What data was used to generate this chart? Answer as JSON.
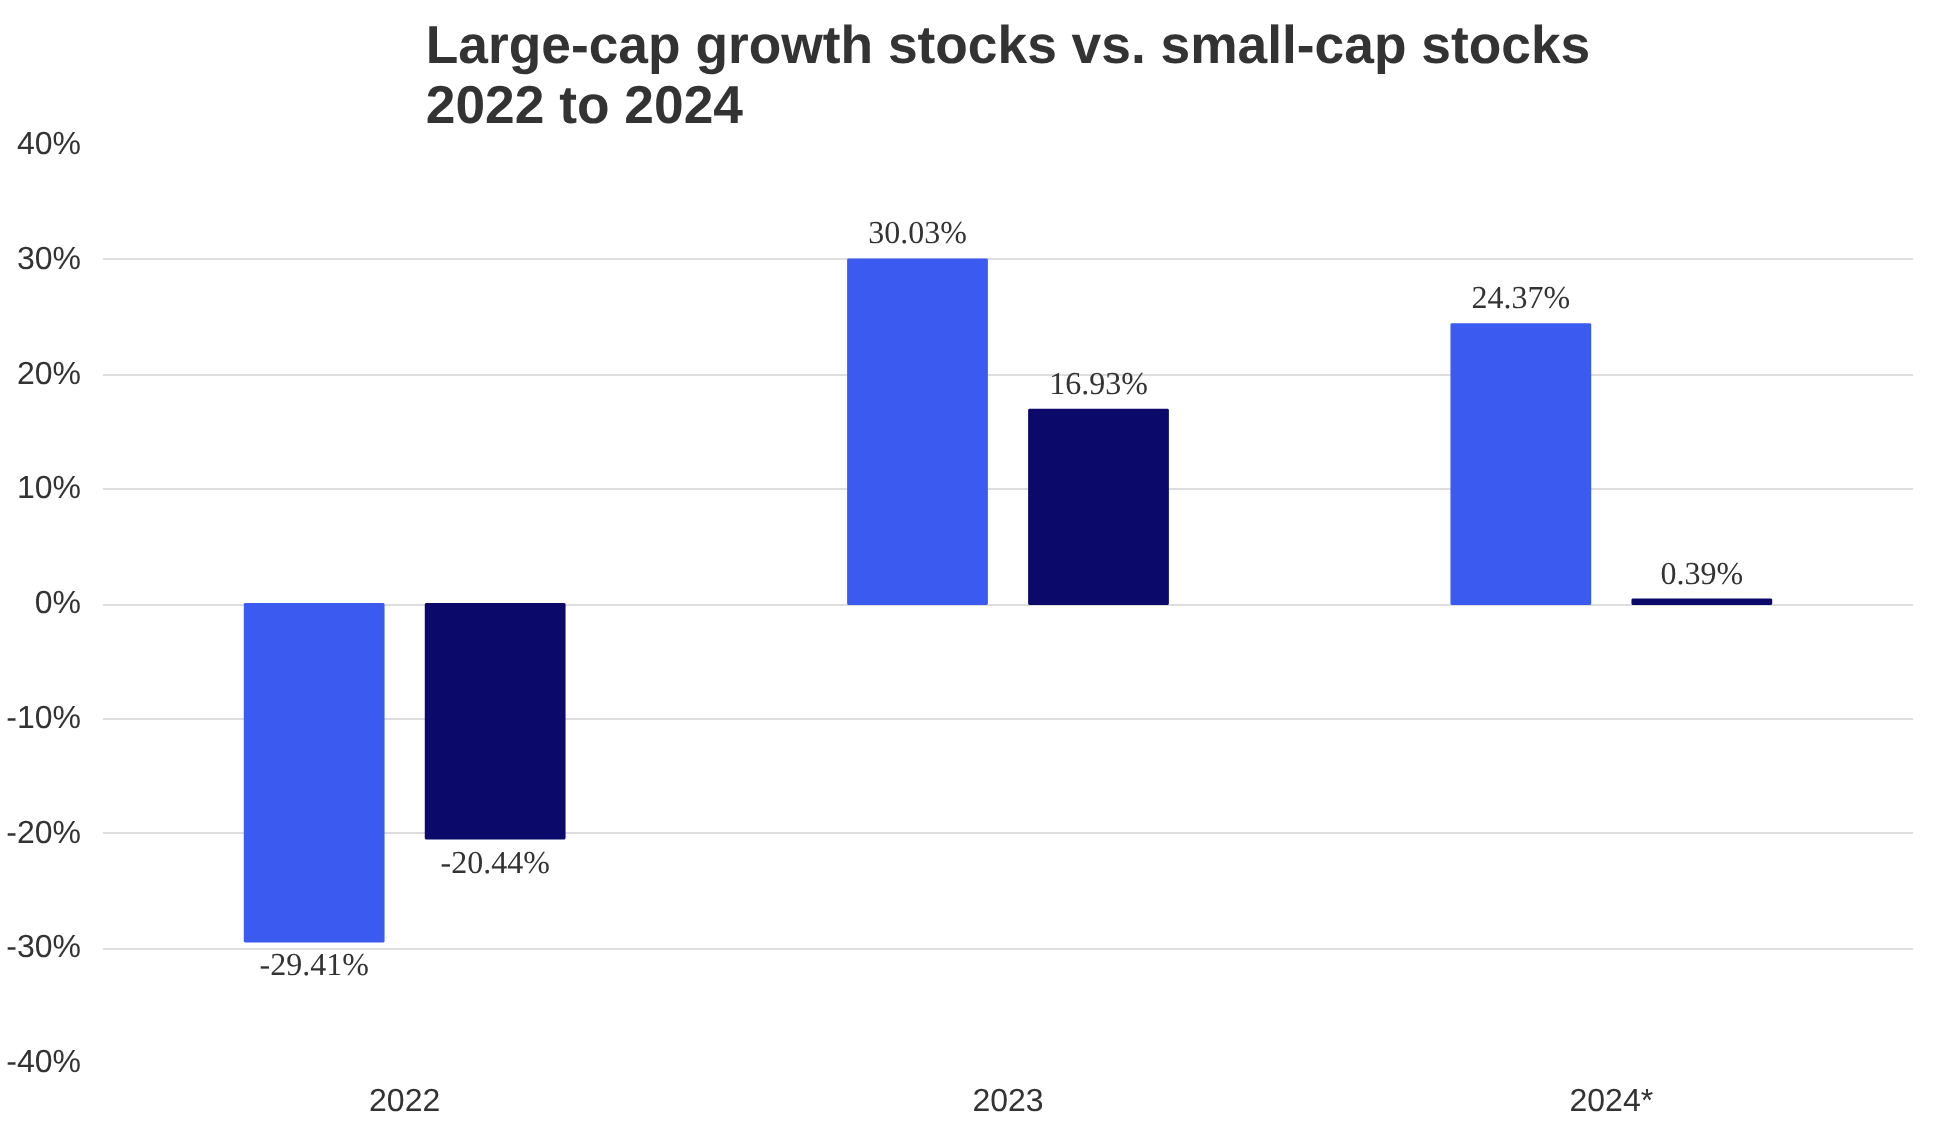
{
  "chart_data": {
    "type": "bar",
    "title": "Large-cap growth stocks vs. small-cap stocks\n2022 to 2024",
    "categories": [
      "2022",
      "2023",
      "2024*"
    ],
    "series": [
      {
        "color": "#3b5bf0",
        "values": [
          -29.41,
          30.03,
          24.37
        ],
        "value_labels": [
          "-29.41%",
          "30.03%",
          "24.37%"
        ]
      },
      {
        "color": "#0b0a6b",
        "values": [
          -20.44,
          16.93,
          0.39
        ],
        "value_labels": [
          "-20.44%",
          "16.93%",
          "0.39%"
        ]
      }
    ],
    "ylim": [
      -40,
      40
    ],
    "yticks": [
      {
        "value": -40,
        "label": "-40%"
      },
      {
        "value": -30,
        "label": "-30%"
      },
      {
        "value": -20,
        "label": "-20%"
      },
      {
        "value": -10,
        "label": "-10%"
      },
      {
        "value": 0,
        "label": "0%"
      },
      {
        "value": 10,
        "label": "10%"
      },
      {
        "value": 20,
        "label": "20%"
      },
      {
        "value": 30,
        "label": "30%"
      },
      {
        "value": 40,
        "label": "40%"
      }
    ],
    "grid": "y"
  }
}
